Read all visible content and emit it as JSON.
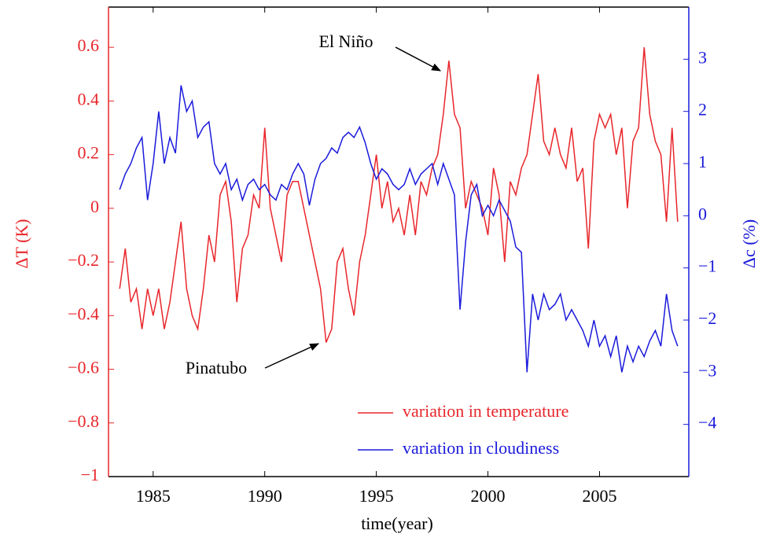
{
  "chart_data": {
    "type": "line",
    "title_annotations": [
      "El Niño",
      "Pinatubo"
    ],
    "xlabel": "time(year)",
    "ylabel": "ΔT (K)",
    "y2label": "Δc (%)",
    "xlim": [
      1983,
      2009
    ],
    "ylim": [
      -1,
      0.75
    ],
    "y2lim": [
      -5,
      4
    ],
    "xticks": [
      1985,
      1990,
      1995,
      2000,
      2005
    ],
    "yticks": [
      {
        "value": -1,
        "label": "−1"
      },
      {
        "value": -0.8,
        "label": "−0.8"
      },
      {
        "value": -0.6,
        "label": "−0.6"
      },
      {
        "value": -0.4,
        "label": "−0.4"
      },
      {
        "value": -0.2,
        "label": "−0.2"
      },
      0,
      0.2,
      0.4,
      0.6
    ],
    "y2ticks": [
      {
        "value": -4,
        "label": "−4"
      },
      {
        "value": -3,
        "label": "−3"
      },
      {
        "value": -2,
        "label": "−2"
      },
      {
        "value": -1,
        "label": "−1"
      },
      0,
      1,
      2,
      3
    ],
    "legend": "lower right",
    "x": [
      1983.5,
      1983.75,
      1984,
      1984.25,
      1984.5,
      1984.75,
      1985,
      1985.25,
      1985.5,
      1985.75,
      1986,
      1986.25,
      1986.5,
      1986.75,
      1987,
      1987.25,
      1987.5,
      1987.75,
      1988,
      1988.25,
      1988.5,
      1988.75,
      1989,
      1989.25,
      1989.5,
      1989.75,
      1990,
      1990.25,
      1990.5,
      1990.75,
      1991,
      1991.25,
      1991.5,
      1991.75,
      1992,
      1992.25,
      1992.5,
      1992.75,
      1993,
      1993.25,
      1993.5,
      1993.75,
      1994,
      1994.25,
      1994.5,
      1994.75,
      1995,
      1995.25,
      1995.5,
      1995.75,
      1996,
      1996.25,
      1996.5,
      1996.75,
      1997,
      1997.25,
      1997.5,
      1997.75,
      1998,
      1998.25,
      1998.5,
      1998.75,
      1999,
      1999.25,
      1999.5,
      1999.75,
      2000,
      2000.25,
      2000.5,
      2000.75,
      2001,
      2001.25,
      2001.5,
      2001.75,
      2002,
      2002.25,
      2002.5,
      2002.75,
      2003,
      2003.25,
      2003.5,
      2003.75,
      2004,
      2004.25,
      2004.5,
      2004.75,
      2005,
      2005.25,
      2005.5,
      2005.75,
      2006,
      2006.25,
      2006.5,
      2006.75,
      2007,
      2007.25,
      2007.5,
      2007.75,
      2008,
      2008.25,
      2008.5
    ],
    "series": [
      {
        "name": "variation in temperature",
        "color": "#e8262b",
        "axis": "y",
        "values": [
          -0.3,
          -0.15,
          -0.35,
          -0.3,
          -0.45,
          -0.3,
          -0.4,
          -0.3,
          -0.45,
          -0.35,
          -0.2,
          -0.05,
          -0.3,
          -0.4,
          -0.45,
          -0.3,
          -0.1,
          -0.2,
          0.05,
          0.1,
          -0.05,
          -0.35,
          -0.15,
          -0.1,
          0.05,
          0,
          0.3,
          0,
          -0.1,
          -0.2,
          0.05,
          0.1,
          0.1,
          0,
          -0.1,
          -0.2,
          -0.3,
          -0.5,
          -0.45,
          -0.2,
          -0.15,
          -0.3,
          -0.4,
          -0.2,
          -0.1,
          0.05,
          0.2,
          0,
          0.1,
          -0.05,
          0,
          -0.1,
          0.05,
          -0.1,
          0.1,
          0.05,
          0.15,
          0.2,
          0.35,
          0.55,
          0.35,
          0.3,
          0,
          0.1,
          0.05,
          0,
          -0.1,
          0.15,
          0.05,
          -0.2,
          0.1,
          0.05,
          0.15,
          0.2,
          0.35,
          0.5,
          0.25,
          0.2,
          0.3,
          0.2,
          0.15,
          0.3,
          0.1,
          0.15,
          -0.15,
          0.25,
          0.35,
          0.3,
          0.35,
          0.2,
          0.3,
          0,
          0.25,
          0.3,
          0.6,
          0.35,
          0.25,
          0.2,
          -0.05,
          0.3,
          -0.05
        ]
      },
      {
        "name": "variation in cloudiness",
        "color": "#1a1adb",
        "axis": "y2",
        "values": [
          0.5,
          0.8,
          1.0,
          1.3,
          1.5,
          0.3,
          1.0,
          2.0,
          1.0,
          1.5,
          1.2,
          2.5,
          2.0,
          2.2,
          1.5,
          1.7,
          1.8,
          1.0,
          0.8,
          1.0,
          0.5,
          0.7,
          0.3,
          0.6,
          0.7,
          0.5,
          0.6,
          0.4,
          0.3,
          0.6,
          0.5,
          0.8,
          1.0,
          0.8,
          0.2,
          0.7,
          1.0,
          1.1,
          1.3,
          1.2,
          1.5,
          1.6,
          1.5,
          1.7,
          1.4,
          1.0,
          0.7,
          0.9,
          0.8,
          0.6,
          0.5,
          0.6,
          0.9,
          0.6,
          0.8,
          0.9,
          1.0,
          0.6,
          1.0,
          0.7,
          0.4,
          -1.8,
          -0.5,
          0.4,
          0.6,
          0,
          0.2,
          0,
          0.3,
          0.1,
          -0.1,
          -0.6,
          -0.7,
          -3.0,
          -1.5,
          -2.0,
          -1.5,
          -1.8,
          -1.7,
          -1.5,
          -2.0,
          -1.8,
          -2.0,
          -2.2,
          -2.5,
          -2.0,
          -2.5,
          -2.3,
          -2.7,
          -2.3,
          -3.0,
          -2.5,
          -2.8,
          -2.5,
          -2.7,
          -2.4,
          -2.2,
          -2.5,
          -1.5,
          -2.2,
          -2.5
        ]
      }
    ]
  }
}
